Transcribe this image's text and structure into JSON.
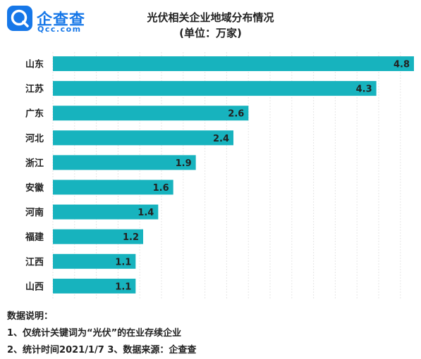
{
  "brand": {
    "name": "企查查",
    "domain": "Qcc.com",
    "accent_color": "#1677e8"
  },
  "chart_data": {
    "type": "bar",
    "orientation": "horizontal",
    "title": "光伏相关企业地域分布情况",
    "subtitle": "(单位：万家)",
    "categories": [
      "山东",
      "江苏",
      "广东",
      "河北",
      "浙江",
      "安徽",
      "河南",
      "福建",
      "江西",
      "山西"
    ],
    "values": [
      4.8,
      4.3,
      2.6,
      2.4,
      1.9,
      1.6,
      1.4,
      1.2,
      1.1,
      1.1
    ],
    "value_labels": [
      "4.8",
      "4.3",
      "2.6",
      "2.4",
      "1.9",
      "1.6",
      "1.4",
      "1.2",
      "1.1",
      "1.1"
    ],
    "xlim": [
      0,
      4.8
    ],
    "bar_color": "#17b3be",
    "grid": true,
    "legend": "none"
  },
  "notes": {
    "heading": "数据说明：",
    "line1": "1、仅统计关键词为“光伏”的在业存续企业",
    "line2": "2、统计时间2021/1/7   3、数据来源：企查查"
  }
}
